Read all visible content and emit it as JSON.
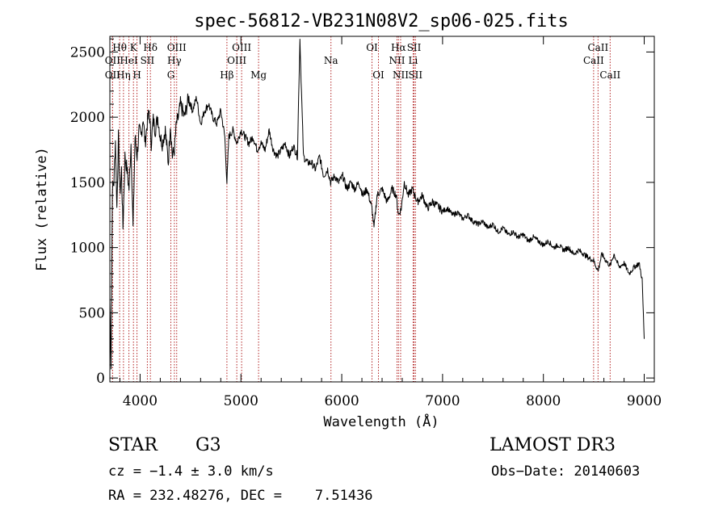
{
  "chart_data": {
    "type": "line",
    "title": "spec-56812-VB231N08V2_sp06-025.fits",
    "xlabel": "Wavelength (Å)",
    "ylabel": "Flux (relative)",
    "xlim": [
      3700,
      9100
    ],
    "ylim": [
      -30,
      2620
    ],
    "xticks": [
      4000,
      5000,
      6000,
      7000,
      8000,
      9000
    ],
    "yticks": [
      0,
      500,
      1000,
      1500,
      2000,
      2500
    ],
    "series": [
      {
        "name": "flux",
        "x": [
          3700,
          3712,
          3725,
          3740,
          3755,
          3770,
          3785,
          3800,
          3815,
          3830,
          3850,
          3870,
          3890,
          3910,
          3930,
          3950,
          3970,
          3990,
          4010,
          4030,
          4050,
          4070,
          4090,
          4110,
          4130,
          4150,
          4175,
          4200,
          4220,
          4250,
          4280,
          4300,
          4320,
          4340,
          4360,
          4380,
          4400,
          4440,
          4480,
          4520,
          4560,
          4600,
          4640,
          4680,
          4720,
          4760,
          4800,
          4840,
          4861,
          4880,
          4920,
          4960,
          5000,
          5040,
          5080,
          5120,
          5160,
          5200,
          5240,
          5280,
          5320,
          5360,
          5400,
          5440,
          5480,
          5520,
          5560,
          5585,
          5620,
          5660,
          5700,
          5740,
          5780,
          5820,
          5860,
          5890,
          5930,
          5970,
          6010,
          6050,
          6090,
          6130,
          6170,
          6210,
          6250,
          6300,
          6320,
          6350,
          6400,
          6450,
          6500,
          6540,
          6563,
          6590,
          6620,
          6660,
          6700,
          6750,
          6800,
          6850,
          6900,
          6950,
          7000,
          7050,
          7100,
          7150,
          7200,
          7250,
          7300,
          7350,
          7400,
          7450,
          7500,
          7550,
          7600,
          7650,
          7700,
          7750,
          7800,
          7850,
          7900,
          7950,
          8000,
          8050,
          8100,
          8150,
          8200,
          8250,
          8300,
          8350,
          8400,
          8450,
          8498,
          8542,
          8580,
          8620,
          8662,
          8700,
          8750,
          8800,
          8850,
          8900,
          8950,
          8980,
          9000
        ],
        "values": [
          600,
          100,
          1450,
          1500,
          1820,
          1300,
          1850,
          1400,
          1600,
          1150,
          1700,
          1600,
          1450,
          1800,
          1150,
          1850,
          1700,
          1900,
          1850,
          2000,
          1800,
          1950,
          2050,
          1800,
          1980,
          1900,
          2000,
          1850,
          1800,
          1900,
          1650,
          1950,
          1700,
          1750,
          1950,
          2000,
          2100,
          2000,
          2150,
          2050,
          2150,
          1950,
          2050,
          2100,
          2000,
          1950,
          2050,
          1850,
          1500,
          1850,
          1900,
          1800,
          1900,
          1850,
          1800,
          1850,
          1750,
          1800,
          1750,
          1900,
          1750,
          1700,
          1750,
          1800,
          1700,
          1780,
          1700,
          2600,
          1700,
          1650,
          1650,
          1600,
          1700,
          1550,
          1600,
          1500,
          1550,
          1500,
          1550,
          1450,
          1500,
          1450,
          1500,
          1400,
          1450,
          1300,
          1150,
          1400,
          1450,
          1350,
          1450,
          1400,
          1250,
          1300,
          1500,
          1400,
          1450,
          1350,
          1400,
          1300,
          1350,
          1320,
          1280,
          1300,
          1250,
          1270,
          1220,
          1250,
          1200,
          1180,
          1200,
          1150,
          1180,
          1120,
          1150,
          1100,
          1120,
          1080,
          1100,
          1050,
          1080,
          1050,
          1020,
          1050,
          1000,
          1020,
          980,
          1000,
          950,
          980,
          950,
          920,
          900,
          820,
          950,
          900,
          860,
          950,
          850,
          880,
          800,
          850,
          880,
          750,
          300
        ]
      }
    ],
    "lines": [
      {
        "label": "Hθ",
        "wl": 3797,
        "row": 1
      },
      {
        "label": "OII",
        "wl": 3727,
        "row": 2
      },
      {
        "label": "K",
        "wl": 3934,
        "row": 1
      },
      {
        "label": "HeI",
        "wl": 3889,
        "row": 2
      },
      {
        "label": "Hδ",
        "wl": 4102,
        "row": 1
      },
      {
        "label": "SII",
        "wl": 4072,
        "row": 2
      },
      {
        "label": "OIII",
        "wl": 4363,
        "row": 1
      },
      {
        "label": "Hγ",
        "wl": 4340,
        "row": 2
      },
      {
        "label": "OII",
        "wl": 3727,
        "row": 3
      },
      {
        "label": "Hη",
        "wl": 3835,
        "row": 3
      },
      {
        "label": "H",
        "wl": 3969,
        "row": 3
      },
      {
        "label": "G",
        "wl": 4305,
        "row": 3
      },
      {
        "label": "OIII",
        "wl": 5007,
        "row": 1
      },
      {
        "label": "OIII",
        "wl": 4959,
        "row": 2
      },
      {
        "label": "Hβ",
        "wl": 4861,
        "row": 3
      },
      {
        "label": "Mg",
        "wl": 5175,
        "row": 3
      },
      {
        "label": "Na",
        "wl": 5893,
        "row": 2
      },
      {
        "label": "OI",
        "wl": 6300,
        "row": 1
      },
      {
        "label": "OI",
        "wl": 6364,
        "row": 3
      },
      {
        "label": "Hα",
        "wl": 6563,
        "row": 1
      },
      {
        "label": "SII",
        "wl": 6717,
        "row": 1
      },
      {
        "label": "NII",
        "wl": 6548,
        "row": 2
      },
      {
        "label": "Li",
        "wl": 6708,
        "row": 2
      },
      {
        "label": "NII",
        "wl": 6584,
        "row": 3
      },
      {
        "label": "SII",
        "wl": 6731,
        "row": 3
      },
      {
        "label": "CaII",
        "wl": 8542,
        "row": 1
      },
      {
        "label": "CaII",
        "wl": 8498,
        "row": 2
      },
      {
        "label": "CaII",
        "wl": 8662,
        "row": 3
      }
    ]
  },
  "info": {
    "object_type": "STAR",
    "subclass": "G3",
    "cz_line": "cz = −1.4 ± 3.0 km/s",
    "coords_line": "RA = 232.48276, DEC =    7.51436",
    "survey": "LAMOST DR3",
    "obs_date_line": "Obs−Date: 20140603"
  }
}
